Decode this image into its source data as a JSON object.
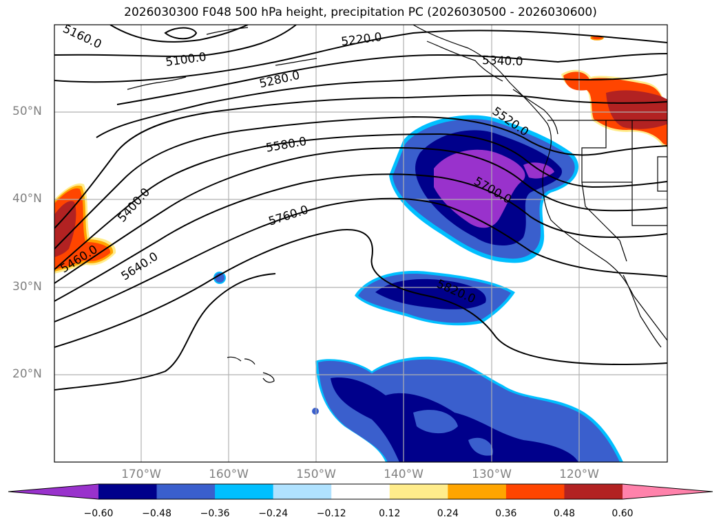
{
  "title": "2026030300 F048 500 hPa height, precipitation PC (2026030500 - 2026030600)",
  "map": {
    "projection": "PlateCarree",
    "lon_range": [
      -180,
      -110
    ],
    "lat_range": [
      10,
      60
    ],
    "lat_ticks": [
      "50°N",
      "40°N",
      "30°N",
      "20°N"
    ],
    "lon_ticks": [
      "170°W",
      "160°W",
      "150°W",
      "140°W",
      "130°W",
      "120°W"
    ],
    "gridlines": true,
    "features": [
      "coastlines",
      "state-borders",
      "country-borders"
    ]
  },
  "contour_labels": [
    "5100.0",
    "5220.0",
    "5280.0",
    "5340.0",
    "5400.0",
    "5460.0",
    "5520.0",
    "5580.0",
    "5640.0",
    "5700.0",
    "5760.0",
    "5820.0",
    "5160.0"
  ],
  "colorbar": {
    "ticks": [
      "−0.60",
      "−0.48",
      "−0.36",
      "−0.24",
      "−0.12",
      "0.12",
      "0.24",
      "0.36",
      "0.48",
      "0.60"
    ],
    "colors": [
      "#9932cc",
      "#00008b",
      "#3a5fcd",
      "#00bfff",
      "#b0e2ff",
      "#ffffff",
      "#ffec8b",
      "#ffa500",
      "#ff4500",
      "#b22222",
      "#ff82ab"
    ],
    "extend": "both"
  }
}
